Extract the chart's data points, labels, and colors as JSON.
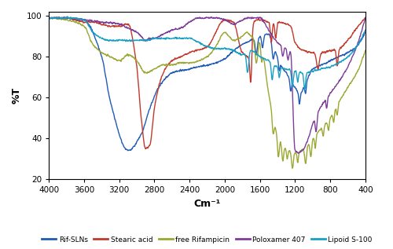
{
  "title": "",
  "xlabel": "Cm⁻¹",
  "ylabel": "%T",
  "xlim": [
    4000,
    400
  ],
  "ylim": [
    20,
    102
  ],
  "xticks": [
    4000,
    3600,
    3200,
    2800,
    2400,
    2000,
    1600,
    1200,
    800,
    400
  ],
  "yticks": [
    20,
    40,
    60,
    80,
    100
  ],
  "legend_entries": [
    "Rif-SLNs",
    "Stearic acid",
    "free Rifampicin",
    "Poloxamer 407",
    "Lipoid S-100"
  ],
  "line_colors": [
    "#1F5BB5",
    "#C0392B",
    "#9BA831",
    "#7D3C98",
    "#17A0C4"
  ],
  "background_color": "#FFFFFF",
  "grid": false
}
